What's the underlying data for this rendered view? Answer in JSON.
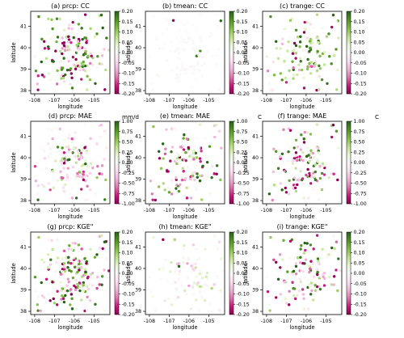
{
  "figure": {
    "colormap": [
      "#8e0152",
      "#c51b7d",
      "#de77ae",
      "#f1b6da",
      "#fde0ef",
      "#f7f7f7",
      "#e6f5d0",
      "#b8e186",
      "#7fbc41",
      "#4d9221",
      "#276419"
    ]
  },
  "chart_data": [
    {
      "type": "scatter",
      "title": "(a) prcp: CC",
      "xlabel": "longitude",
      "ylabel": "latitude",
      "xlim": [
        -108.2,
        -104.2
      ],
      "ylim": [
        37.85,
        41.7
      ],
      "xticks": [
        "-108",
        "-107",
        "-106",
        "-105"
      ],
      "yticks": [
        "38",
        "39",
        "40",
        "41"
      ],
      "colorbar": {
        "range": [
          -0.2,
          0.2
        ],
        "ticks": [
          "0.20",
          "0.15",
          "0.10",
          "0.05",
          "0.00",
          "-0.05",
          "-0.10",
          "-0.15",
          "-0.20"
        ],
        "unit": ""
      },
      "density": 1.0,
      "spread": 1.0,
      "seed": 11
    },
    {
      "type": "scatter",
      "title": "(b) tmean: CC",
      "xlabel": "longitude",
      "ylabel": "latitude",
      "xlim": [
        -108.2,
        -104.2
      ],
      "ylim": [
        37.85,
        41.7
      ],
      "xticks": [
        "-108",
        "-107",
        "-106",
        "-105"
      ],
      "yticks": [
        "38",
        "39",
        "40",
        "41"
      ],
      "colorbar": {
        "range": [
          -0.2,
          0.2
        ],
        "ticks": [
          "0.20",
          "0.15",
          "0.10",
          "0.05",
          "0.00",
          "-0.05",
          "-0.10",
          "-0.15",
          "-0.20"
        ],
        "unit": ""
      },
      "density": 0.6,
      "spread": 0.06,
      "seed": 23
    },
    {
      "type": "scatter",
      "title": "(c) trange: CC",
      "xlabel": "longitude",
      "ylabel": "latitude",
      "xlim": [
        -108.2,
        -104.2
      ],
      "ylim": [
        37.85,
        41.7
      ],
      "xticks": [
        "-108",
        "-107",
        "-106",
        "-105"
      ],
      "yticks": [
        "38",
        "39",
        "40",
        "41"
      ],
      "colorbar": {
        "range": [
          -0.2,
          0.2
        ],
        "ticks": [
          "0.20",
          "0.15",
          "0.10",
          "0.05",
          "0.00",
          "-0.05",
          "-0.10",
          "-0.15",
          "-0.20"
        ],
        "unit": ""
      },
      "density": 0.85,
      "spread": 0.75,
      "bias": 0.25,
      "seed": 37
    },
    {
      "type": "scatter",
      "title": "(d) prcp: MAE",
      "xlabel": "longitude",
      "ylabel": "latitude",
      "xlim": [
        -108.2,
        -104.2
      ],
      "ylim": [
        37.85,
        41.7
      ],
      "xticks": [
        "-108",
        "-107",
        "-106",
        "-105"
      ],
      "yticks": [
        "38",
        "39",
        "40",
        "41"
      ],
      "colorbar": {
        "range": [
          -1.0,
          1.0
        ],
        "ticks": [
          "1.00",
          "0.75",
          "0.50",
          "0.25",
          "0.00",
          "-0.25",
          "-0.50",
          "-0.75",
          "-1.00"
        ],
        "unit": "mm/d"
      },
      "density": 1.0,
      "spread": 0.55,
      "bias": -0.15,
      "seed": 41
    },
    {
      "type": "scatter",
      "title": "(e) tmean: MAE",
      "xlabel": "longitude",
      "ylabel": "latitude",
      "xlim": [
        -108.2,
        -104.2
      ],
      "ylim": [
        37.85,
        41.7
      ],
      "xticks": [
        "-108",
        "-107",
        "-106",
        "-105"
      ],
      "yticks": [
        "38",
        "39",
        "40",
        "41"
      ],
      "colorbar": {
        "range": [
          -1.0,
          1.0
        ],
        "ticks": [
          "1.00",
          "0.75",
          "0.50",
          "0.25",
          "0.00",
          "-0.25",
          "-0.50",
          "-0.75",
          "-1.00"
        ],
        "unit": "C"
      },
      "density": 0.7,
      "spread": 0.9,
      "seed": 53
    },
    {
      "type": "scatter",
      "title": "(f) trange: MAE",
      "xlabel": "longitude",
      "ylabel": "latitude",
      "xlim": [
        -108.2,
        -104.2
      ],
      "ylim": [
        37.85,
        41.7
      ],
      "xticks": [
        "-108",
        "-107",
        "-106",
        "-105"
      ],
      "yticks": [
        "38",
        "39",
        "40",
        "41"
      ],
      "colorbar": {
        "range": [
          -1.0,
          1.0
        ],
        "ticks": [
          "1.00",
          "0.75",
          "0.50",
          "0.25",
          "0.00",
          "-0.25",
          "-0.50",
          "-0.75",
          "-1.00"
        ],
        "unit": "C"
      },
      "density": 0.8,
      "spread": 0.9,
      "bias": -0.1,
      "seed": 67
    },
    {
      "type": "scatter",
      "title": "(g) prcp: KGE\"",
      "xlabel": "longitude",
      "ylabel": "latitude",
      "xlim": [
        -108.2,
        -104.2
      ],
      "ylim": [
        37.85,
        41.7
      ],
      "xticks": [
        "-108",
        "-107",
        "-106",
        "-105"
      ],
      "yticks": [
        "38",
        "39",
        "40",
        "41"
      ],
      "colorbar": {
        "range": [
          -0.2,
          0.2
        ],
        "ticks": [
          "0.20",
          "0.15",
          "0.10",
          "0.05",
          "0.00",
          "-0.05",
          "-0.10",
          "-0.15",
          "-0.20"
        ],
        "unit": ""
      },
      "density": 1.15,
      "spread": 1.0,
      "seed": 79
    },
    {
      "type": "scatter",
      "title": "(h) tmean: KGE\"",
      "xlabel": "longitude",
      "ylabel": "latitude",
      "xlim": [
        -108.2,
        -104.2
      ],
      "ylim": [
        37.85,
        41.7
      ],
      "xticks": [
        "-108",
        "-107",
        "-106",
        "-105"
      ],
      "yticks": [
        "38",
        "39",
        "40",
        "41"
      ],
      "colorbar": {
        "range": [
          -0.2,
          0.2
        ],
        "ticks": [
          "0.20",
          "0.15",
          "0.10",
          "0.05",
          "0.00",
          "-0.05",
          "-0.10",
          "-0.15",
          "-0.20"
        ],
        "unit": ""
      },
      "density": 0.6,
      "spread": 0.35,
      "seed": 83
    },
    {
      "type": "scatter",
      "title": "(i) trange: KGE\"",
      "xlabel": "longitude",
      "ylabel": "latitude",
      "xlim": [
        -108.2,
        -104.2
      ],
      "ylim": [
        37.85,
        41.7
      ],
      "xticks": [
        "-108",
        "-107",
        "-106",
        "-105"
      ],
      "yticks": [
        "38",
        "39",
        "40",
        "41"
      ],
      "colorbar": {
        "range": [
          -0.2,
          0.2
        ],
        "ticks": [
          "0.20",
          "0.15",
          "0.10",
          "0.05",
          "0.00",
          "-0.05",
          "-0.10",
          "-0.15",
          "-0.20"
        ],
        "unit": ""
      },
      "density": 0.8,
      "spread": 0.85,
      "seed": 97
    }
  ]
}
